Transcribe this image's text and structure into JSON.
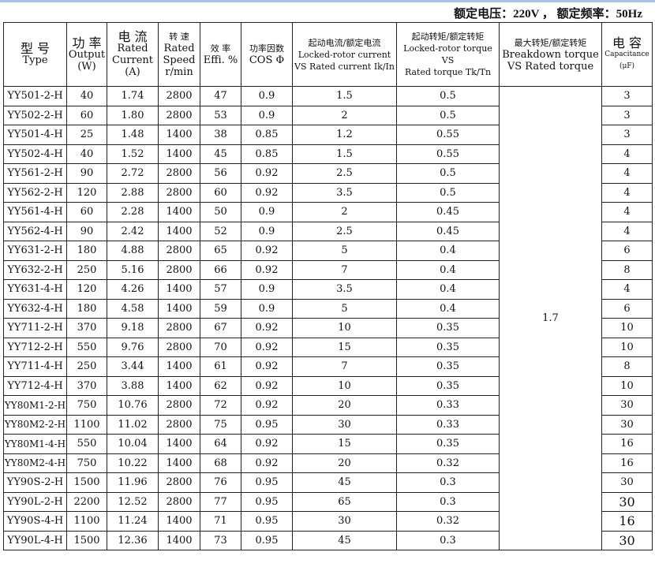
{
  "top_band_color": "#a9c4e6",
  "rating": "额定电压：220V ， 额定频率：50Hz",
  "headers": [
    [
      "型 号",
      "Type"
    ],
    [
      "功 率",
      "Output",
      "(W)"
    ],
    [
      "电 流",
      "Rated",
      "Current",
      "(A)"
    ],
    [
      "转   速",
      "Rated",
      "Speed",
      "r/min"
    ],
    [
      "效 率",
      "Effi. %"
    ],
    [
      "功率因数",
      "COS Φ"
    ],
    [
      "起动电流/额定电流",
      "Locked-rotor current",
      "VS Rated current Ik/In"
    ],
    [
      "起动转矩/额定转矩",
      "Locked-rotor torque VS",
      "Rated torque Tk/Tn"
    ],
    [
      "最大转矩/额定转矩",
      "Breakdown torque",
      "VS Rated torque"
    ],
    [
      "电 容",
      "Capacitance",
      "(μF)"
    ]
  ],
  "breakdown_torque": "1.7",
  "rows": [
    [
      "YY501-2-H",
      "40",
      "1.74",
      "2800",
      "47",
      "0.9",
      "1.5",
      "0.5",
      "3"
    ],
    [
      "YY502-2-H",
      "60",
      "1.80",
      "2800",
      "53",
      "0.9",
      "2",
      "0.5",
      "3"
    ],
    [
      "YY501-4-H",
      "25",
      "1.48",
      "1400",
      "38",
      "0.85",
      "1.2",
      "0.55",
      "3"
    ],
    [
      "YY502-4-H",
      "40",
      "1.52",
      "1400",
      "45",
      "0.85",
      "1.5",
      "0.55",
      "4"
    ],
    [
      "YY561-2-H",
      "90",
      "2.72",
      "2800",
      "56",
      "0.92",
      "2.5",
      "0.5",
      "4"
    ],
    [
      "YY562-2-H",
      "120",
      "2.88",
      "2800",
      "60",
      "0.92",
      "3.5",
      "0.5",
      "4"
    ],
    [
      "YY561-4-H",
      "60",
      "2.28",
      "1400",
      "50",
      "0.9",
      "2",
      "0.45",
      "4"
    ],
    [
      "YY562-4-H",
      "90",
      "2.42",
      "1400",
      "52",
      "0.9",
      "2.5",
      "0.45",
      "4"
    ],
    [
      "YY631-2-H",
      "180",
      "4.88",
      "2800",
      "65",
      "0.92",
      "5",
      "0.4",
      "6"
    ],
    [
      "YY632-2-H",
      "250",
      "5.16",
      "2800",
      "66",
      "0.92",
      "7",
      "0.4",
      "8"
    ],
    [
      "YY631-4-H",
      "120",
      "4.26",
      "1400",
      "57",
      "0.9",
      "3.5",
      "0.4",
      "4"
    ],
    [
      "YY632-4-H",
      "180",
      "4.58",
      "1400",
      "59",
      "0.9",
      "5",
      "0.4",
      "6"
    ],
    [
      "YY711-2-H",
      "370",
      "9.18",
      "2800",
      "67",
      "0.92",
      "10",
      "0.35",
      "10"
    ],
    [
      "YY712-2-H",
      "550",
      "9.76",
      "2800",
      "70",
      "0.92",
      "15",
      "0.35",
      "10"
    ],
    [
      "YY711-4-H",
      "250",
      "3.44",
      "1400",
      "61",
      "0.92",
      "7",
      "0.35",
      "8"
    ],
    [
      "YY712-4-H",
      "370",
      "3.88",
      "1400",
      "62",
      "0.92",
      "10",
      "0.35",
      "10"
    ],
    [
      "YY80M1-2-H",
      "750",
      "10.76",
      "2800",
      "72",
      "0.92",
      "20",
      "0.33",
      "30"
    ],
    [
      "YY80M2-2-H",
      "1100",
      "11.02",
      "2800",
      "75",
      "0.95",
      "30",
      "0.33",
      "30"
    ],
    [
      "YY80M1-4-H",
      "550",
      "10.04",
      "1400",
      "64",
      "0.92",
      "15",
      "0.35",
      "16"
    ],
    [
      "YY80M2-4-H",
      "750",
      "10.22",
      "1400",
      "68",
      "0.92",
      "20",
      "0.32",
      "16"
    ],
    [
      "YY90S-2-H",
      "1500",
      "11.96",
      "2800",
      "76",
      "0.95",
      "45",
      "0.3",
      "30"
    ],
    [
      "YY90L-2-H",
      "2200",
      "12.52",
      "2800",
      "77",
      "0.95",
      "65",
      "0.3",
      "30"
    ],
    [
      "YY90S-4-H",
      "1100",
      "11.24",
      "1400",
      "71",
      "0.95",
      "30",
      "0.32",
      "16"
    ],
    [
      "YY90L-4-H",
      "1500",
      "12.36",
      "1400",
      "73",
      "0.95",
      "45",
      "0.3",
      "30"
    ]
  ]
}
